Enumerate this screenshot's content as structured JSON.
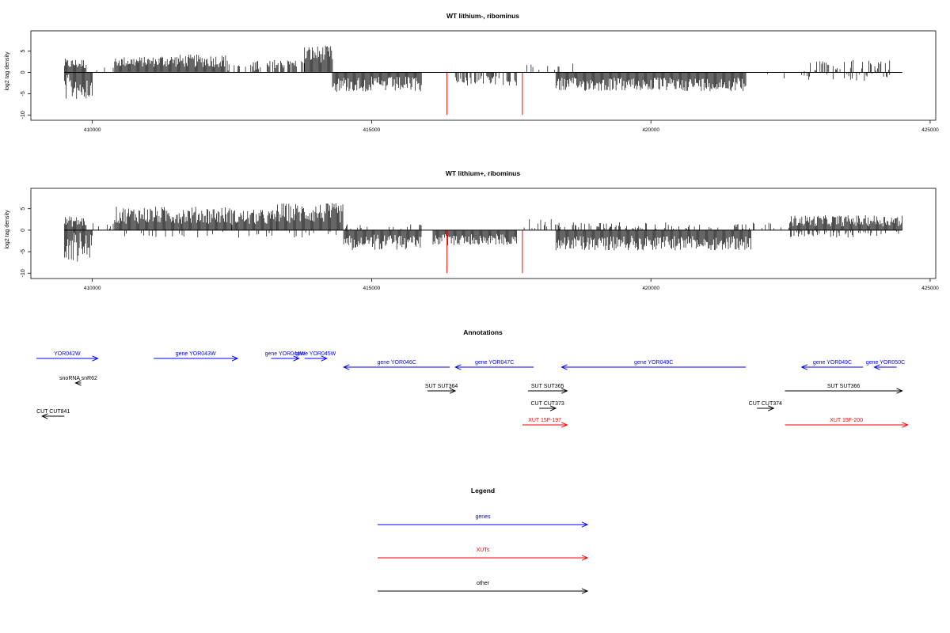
{
  "chart_data": [
    {
      "type": "bar",
      "title": "WT lithium-, ribominus",
      "xlabel": "",
      "ylabel": "log2 tag density",
      "xlim": [
        408900,
        425100
      ],
      "ylim": [
        -10.5,
        9
      ],
      "x_ticks": [
        410000,
        415000,
        420000,
        425000
      ],
      "y_ticks": [
        -10,
        -5,
        0,
        5
      ],
      "x_tick_labels": [
        "410000",
        "415000",
        "420000",
        "425000"
      ],
      "y_tick_labels": [
        "-10",
        "-5",
        "0",
        "5"
      ],
      "baseline": [
        409500,
        424500
      ],
      "bar_color": "#000000",
      "highlight_color": "#ff0000",
      "segments": [
        {
          "start": 409500,
          "end": 409900,
          "sign": 1,
          "mean": 2.0,
          "var": 1.2
        },
        {
          "start": 409500,
          "end": 410000,
          "sign": -1,
          "mean": 3.5,
          "var": 3.0
        },
        {
          "start": 410000,
          "end": 410400,
          "sign": 1,
          "mean": 1.0,
          "var": 1.0,
          "density": 0.15
        },
        {
          "start": 410400,
          "end": 411200,
          "sign": 1,
          "mean": 2.5,
          "var": 1.2
        },
        {
          "start": 411200,
          "end": 412400,
          "sign": 1,
          "mean": 2.7,
          "var": 1.5
        },
        {
          "start": 412400,
          "end": 413200,
          "sign": 1,
          "mean": 1.5,
          "var": 1.3,
          "density": 0.4
        },
        {
          "start": 413200,
          "end": 413800,
          "sign": 1,
          "mean": 2.0,
          "var": 1.0,
          "density": 0.5
        },
        {
          "start": 413800,
          "end": 414300,
          "sign": 1,
          "mean": 4.3,
          "var": 2.0
        },
        {
          "start": 414300,
          "end": 415900,
          "sign": -1,
          "mean": 2.8,
          "var": 1.8
        },
        {
          "start": 416500,
          "end": 417600,
          "sign": -1,
          "mean": 2.0,
          "var": 1.2,
          "density": 0.6
        },
        {
          "start": 417700,
          "end": 418800,
          "sign": 1,
          "mean": 1.2,
          "var": 1.0,
          "density": 0.1
        },
        {
          "start": 418300,
          "end": 421700,
          "sign": -1,
          "mean": 2.8,
          "var": 1.6
        },
        {
          "start": 421700,
          "end": 422800,
          "sign": -1,
          "mean": 1.0,
          "var": 0.8,
          "density": 0.05
        },
        {
          "start": 422700,
          "end": 424300,
          "sign": 1,
          "mean": 1.6,
          "var": 1.3,
          "density": 0.3
        },
        {
          "start": 422700,
          "end": 424300,
          "sign": -1,
          "mean": 1.0,
          "var": 1.0,
          "density": 0.15
        }
      ],
      "highlights": [
        {
          "x": 416350,
          "y": -10
        },
        {
          "x": 417700,
          "y": -10
        }
      ]
    },
    {
      "type": "bar",
      "title": "WT lithium+, ribominus",
      "xlabel": "",
      "ylabel": "log2 tag density",
      "xlim": [
        408900,
        425100
      ],
      "ylim": [
        -10.5,
        9
      ],
      "x_ticks": [
        410000,
        415000,
        420000,
        425000
      ],
      "y_ticks": [
        -10,
        -5,
        0,
        5
      ],
      "x_tick_labels": [
        "410000",
        "415000",
        "420000",
        "425000"
      ],
      "y_tick_labels": [
        "-10",
        "-5",
        "0",
        "5"
      ],
      "baseline": [
        409500,
        424500
      ],
      "bar_color": "#000000",
      "highlight_color": "#ff0000",
      "segments": [
        {
          "start": 409500,
          "end": 409900,
          "sign": 1,
          "mean": 2.0,
          "var": 1.2
        },
        {
          "start": 409500,
          "end": 410000,
          "sign": -1,
          "mean": 4.0,
          "var": 3.5
        },
        {
          "start": 410000,
          "end": 410400,
          "sign": 1,
          "mean": 1.0,
          "var": 1.0,
          "density": 0.2
        },
        {
          "start": 410400,
          "end": 412500,
          "sign": 1,
          "mean": 3.5,
          "var": 2.0
        },
        {
          "start": 412500,
          "end": 413300,
          "sign": 1,
          "mean": 3.0,
          "var": 1.8
        },
        {
          "start": 413300,
          "end": 414500,
          "sign": 1,
          "mean": 4.0,
          "var": 2.3
        },
        {
          "start": 410500,
          "end": 414500,
          "sign": -1,
          "mean": 1.0,
          "var": 0.8,
          "density": 0.12
        },
        {
          "start": 414500,
          "end": 415900,
          "sign": -1,
          "mean": 2.8,
          "var": 1.8
        },
        {
          "start": 414500,
          "end": 415900,
          "sign": 1,
          "mean": 0.8,
          "var": 0.6,
          "density": 0.2
        },
        {
          "start": 416100,
          "end": 417600,
          "sign": -1,
          "mean": 2.2,
          "var": 1.3
        },
        {
          "start": 417700,
          "end": 418400,
          "sign": 1,
          "mean": 1.5,
          "var": 1.2,
          "density": 0.3
        },
        {
          "start": 418300,
          "end": 421800,
          "sign": -1,
          "mean": 3.0,
          "var": 1.7
        },
        {
          "start": 418300,
          "end": 421800,
          "sign": 1,
          "mean": 1.0,
          "var": 0.9,
          "density": 0.25
        },
        {
          "start": 421800,
          "end": 422500,
          "sign": 1,
          "mean": 1.0,
          "var": 0.8,
          "density": 0.2
        },
        {
          "start": 422500,
          "end": 424500,
          "sign": 1,
          "mean": 2.2,
          "var": 1.3
        },
        {
          "start": 422500,
          "end": 424500,
          "sign": -1,
          "mean": 0.9,
          "var": 0.8,
          "density": 0.3
        }
      ],
      "highlights": [
        {
          "x": 416350,
          "y": -10
        },
        {
          "x": 417700,
          "y": -10
        }
      ]
    }
  ],
  "annotations": {
    "title": "Annotations",
    "xlim": [
      408900,
      425100
    ],
    "features": [
      {
        "label": "YOR042W",
        "start": 409000,
        "end": 410100,
        "strand": "+",
        "track": 1,
        "category": "genes"
      },
      {
        "label": "gene YOR043W",
        "start": 411100,
        "end": 412600,
        "strand": "+",
        "track": 1,
        "category": "genes"
      },
      {
        "label": "gene YOR044W",
        "start": 413200,
        "end": 413700,
        "strand": "+",
        "track": 1,
        "category": "genes"
      },
      {
        "label": "gene YOR045W",
        "start": 413800,
        "end": 414200,
        "strand": "+",
        "track": 1,
        "category": "genes"
      },
      {
        "label": "gene YOR046C",
        "start": 414500,
        "end": 416400,
        "strand": "-",
        "track": 2,
        "category": "genes"
      },
      {
        "label": "gene YOR047C",
        "start": 416500,
        "end": 417900,
        "strand": "-",
        "track": 2,
        "category": "genes"
      },
      {
        "label": "gene YOR049C",
        "start": 418400,
        "end": 421700,
        "strand": "-",
        "track": 2,
        "category": "genes"
      },
      {
        "label": "gene YOR049C",
        "start": 422700,
        "end": 423800,
        "strand": "-",
        "track": 2,
        "category": "genes"
      },
      {
        "label": "gene YOR050C",
        "start": 424000,
        "end": 424400,
        "strand": "-",
        "track": 2,
        "category": "genes"
      },
      {
        "label": "snoRNA snR62",
        "start": 409700,
        "end": 409800,
        "strand": "-",
        "track": 3,
        "category": "other"
      },
      {
        "label": "SUT SUT364",
        "start": 416000,
        "end": 416500,
        "strand": "+",
        "track": 4,
        "category": "other"
      },
      {
        "label": "SUT SUT365",
        "start": 417800,
        "end": 418500,
        "strand": "+",
        "track": 4,
        "category": "other"
      },
      {
        "label": "SUT SUT366",
        "start": 422400,
        "end": 424500,
        "strand": "+",
        "track": 4,
        "category": "other"
      },
      {
        "label": "CUT CUT373",
        "start": 418000,
        "end": 418300,
        "strand": "+",
        "track": 5,
        "category": "other"
      },
      {
        "label": "CUT CUT374",
        "start": 421900,
        "end": 422200,
        "strand": "+",
        "track": 5,
        "category": "other"
      },
      {
        "label": "CUT CUT841",
        "start": 409100,
        "end": 409500,
        "strand": "-",
        "track": 6,
        "category": "other"
      },
      {
        "label": "XUT 15F-197",
        "start": 417700,
        "end": 418500,
        "strand": "+",
        "track": 7,
        "category": "XUTs"
      },
      {
        "label": "XUT 15F-200",
        "start": 422400,
        "end": 424600,
        "strand": "+",
        "track": 7,
        "category": "XUTs"
      }
    ]
  },
  "legend": {
    "title": "Legend",
    "items": [
      {
        "label": "genes",
        "color": "#0000ff"
      },
      {
        "label": "XUTs",
        "color": "#ff0000"
      },
      {
        "label": "other",
        "color": "#000000"
      }
    ]
  },
  "colors": {
    "genes": "#0000ff",
    "XUTs": "#ff0000",
    "other": "#000000"
  }
}
